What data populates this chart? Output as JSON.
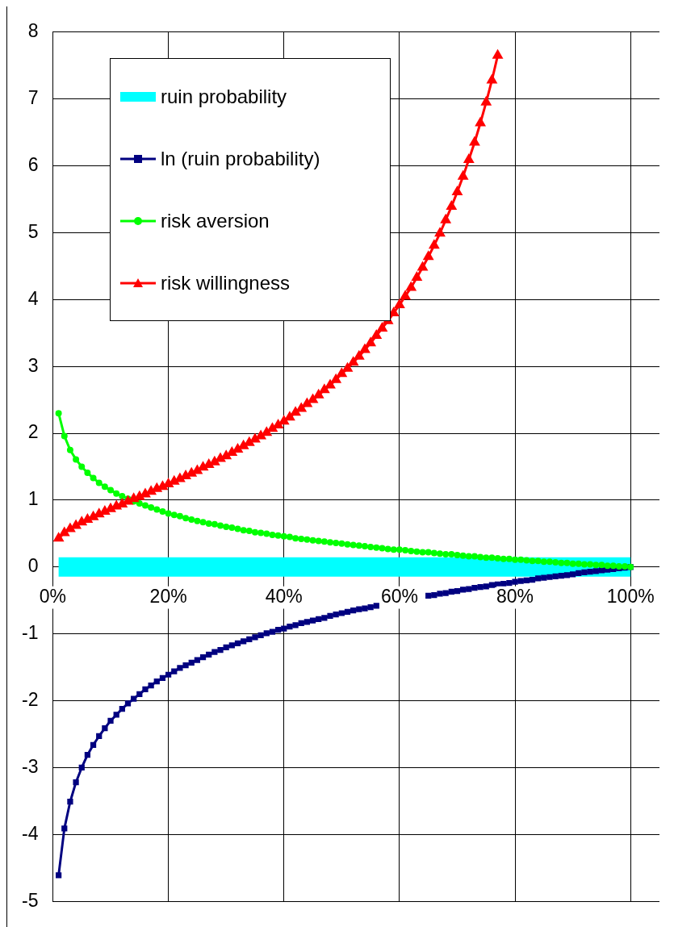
{
  "chart_data": {
    "type": "line",
    "x": [
      0.01,
      0.02,
      0.03,
      0.04,
      0.05,
      0.06,
      0.07,
      0.08,
      0.09,
      0.1,
      0.11,
      0.12,
      0.13,
      0.14,
      0.15,
      0.16,
      0.17,
      0.18,
      0.19,
      0.2,
      0.21,
      0.22,
      0.23,
      0.24,
      0.25,
      0.26,
      0.27,
      0.28,
      0.29,
      0.3,
      0.31,
      0.32,
      0.33,
      0.34,
      0.35,
      0.36,
      0.37,
      0.38,
      0.39,
      0.4,
      0.41,
      0.42,
      0.43,
      0.44,
      0.45,
      0.46,
      0.47,
      0.48,
      0.49,
      0.5,
      0.51,
      0.52,
      0.53,
      0.54,
      0.55,
      0.56,
      0.57,
      0.58,
      0.59,
      0.6,
      0.61,
      0.62,
      0.63,
      0.64,
      0.65,
      0.66,
      0.67,
      0.68,
      0.69,
      0.7,
      0.71,
      0.72,
      0.73,
      0.74,
      0.75,
      0.76,
      0.77,
      0.78,
      0.79,
      0.8,
      0.81,
      0.82,
      0.83,
      0.84,
      0.85,
      0.86,
      0.87,
      0.88,
      0.89,
      0.9,
      0.91,
      0.92,
      0.93,
      0.94,
      0.95,
      0.96,
      0.97,
      0.98,
      0.99,
      1.0
    ],
    "series": [
      {
        "name": "ruin probability",
        "color": "#00ffff",
        "marker": "none",
        "values": [
          0,
          0,
          0,
          0,
          0,
          0,
          0,
          0,
          0,
          0,
          0,
          0,
          0,
          0,
          0,
          0,
          0,
          0,
          0,
          0,
          0,
          0,
          0,
          0,
          0,
          0,
          0,
          0,
          0,
          0,
          0,
          0,
          0,
          0,
          0,
          0,
          0,
          0,
          0,
          0,
          0,
          0,
          0,
          0,
          0,
          0,
          0,
          0,
          0,
          0,
          0,
          0,
          0,
          0,
          0,
          0,
          0,
          0,
          0,
          0,
          0,
          0,
          0,
          0,
          0,
          0,
          0,
          0,
          0,
          0,
          0,
          0,
          0,
          0,
          0,
          0,
          0,
          0,
          0,
          0,
          0,
          0,
          0,
          0,
          0,
          0,
          0,
          0,
          0,
          0,
          0,
          0,
          0,
          0,
          0,
          0,
          0,
          0,
          0,
          0
        ]
      },
      {
        "name": "ln (ruin probability)",
        "color": "#000080",
        "marker": "square",
        "values": [
          -4.61,
          -3.91,
          -3.51,
          -3.22,
          -3.0,
          -2.81,
          -2.66,
          -2.53,
          -2.41,
          -2.3,
          -2.21,
          -2.12,
          -2.04,
          -1.97,
          -1.9,
          -1.83,
          -1.77,
          -1.71,
          -1.66,
          -1.61,
          -1.56,
          -1.51,
          -1.47,
          -1.43,
          -1.39,
          -1.35,
          -1.31,
          -1.27,
          -1.24,
          -1.2,
          -1.17,
          -1.14,
          -1.11,
          -1.08,
          -1.05,
          -1.02,
          -0.99,
          -0.97,
          -0.94,
          -0.92,
          -0.89,
          -0.87,
          -0.84,
          -0.82,
          -0.8,
          -0.78,
          -0.76,
          -0.73,
          -0.71,
          -0.69,
          -0.67,
          -0.65,
          -0.63,
          -0.62,
          -0.6,
          -0.58,
          null,
          null,
          null,
          null,
          null,
          null,
          null,
          null,
          -0.43,
          -0.42,
          -0.4,
          -0.39,
          -0.37,
          -0.36,
          -0.34,
          -0.33,
          -0.31,
          -0.3,
          -0.29,
          -0.27,
          -0.26,
          -0.25,
          -0.24,
          -0.22,
          -0.21,
          -0.2,
          -0.19,
          -0.17,
          -0.16,
          -0.15,
          -0.14,
          -0.13,
          -0.12,
          -0.11,
          -0.09,
          -0.08,
          -0.07,
          -0.06,
          -0.05,
          -0.04,
          -0.03,
          -0.02,
          -0.01,
          0
        ]
      },
      {
        "name": "risk aversion",
        "color": "#00ff00",
        "marker": "circle",
        "values": [
          2.3,
          1.96,
          1.75,
          1.61,
          1.5,
          1.41,
          1.33,
          1.26,
          1.2,
          1.15,
          1.1,
          1.06,
          1.02,
          0.98,
          0.95,
          0.92,
          0.89,
          0.86,
          0.83,
          0.8,
          0.78,
          0.76,
          0.73,
          0.71,
          0.69,
          0.67,
          0.65,
          0.64,
          0.62,
          0.6,
          0.59,
          0.57,
          0.55,
          0.54,
          0.52,
          0.51,
          0.5,
          0.48,
          0.47,
          0.46,
          0.45,
          0.43,
          0.42,
          0.41,
          0.4,
          0.39,
          0.38,
          0.37,
          0.36,
          0.35,
          0.34,
          0.33,
          0.32,
          0.31,
          0.3,
          0.29,
          0.28,
          0.27,
          0.26,
          0.26,
          0.25,
          0.24,
          0.23,
          0.22,
          0.22,
          0.21,
          0.2,
          0.19,
          0.19,
          0.18,
          0.17,
          0.16,
          0.16,
          0.15,
          0.14,
          0.14,
          0.13,
          0.12,
          0.12,
          0.11,
          0.11,
          0.1,
          0.09,
          0.09,
          0.08,
          0.08,
          0.07,
          0.06,
          0.06,
          0.05,
          0.05,
          0.04,
          0.04,
          0.03,
          0.03,
          0.02,
          0.02,
          0.01,
          0.01,
          0
        ]
      },
      {
        "name": "risk willingness",
        "color": "#ff0000",
        "marker": "triangle",
        "values": [
          0.43,
          0.51,
          0.57,
          0.62,
          0.67,
          0.71,
          0.75,
          0.79,
          0.83,
          0.87,
          0.91,
          0.94,
          0.98,
          1.02,
          1.05,
          1.09,
          1.13,
          1.17,
          1.2,
          1.24,
          1.28,
          1.32,
          1.36,
          1.4,
          1.44,
          1.49,
          1.53,
          1.57,
          1.62,
          1.66,
          1.71,
          1.76,
          1.81,
          1.86,
          1.91,
          1.96,
          2.01,
          2.07,
          2.12,
          2.18,
          2.24,
          2.31,
          2.37,
          2.44,
          2.5,
          2.57,
          2.65,
          2.72,
          2.8,
          2.89,
          2.97,
          3.06,
          3.15,
          3.25,
          3.35,
          3.46,
          3.57,
          3.68,
          3.8,
          3.92,
          4.05,
          4.18,
          4.33,
          4.48,
          4.64,
          4.81,
          4.99,
          5.19,
          5.39,
          5.61,
          5.84,
          6.09,
          6.35,
          6.64,
          6.95,
          7.28,
          7.65,
          null,
          null,
          null,
          null,
          null,
          null,
          null,
          null,
          null,
          null,
          null,
          null,
          null,
          null,
          null,
          null,
          null,
          null,
          null,
          null,
          null,
          null,
          null
        ]
      }
    ],
    "xlim": [
      0,
      1.05
    ],
    "xticks": [
      {
        "value": 0,
        "label": "0%"
      },
      {
        "value": 0.2,
        "label": "20%"
      },
      {
        "value": 0.4,
        "label": "40%"
      },
      {
        "value": 0.6,
        "label": "60%"
      },
      {
        "value": 0.8,
        "label": "80%"
      },
      {
        "value": 1,
        "label": "100%"
      }
    ],
    "ylim": [
      -5,
      8
    ],
    "yticks": [
      -5,
      -4,
      -3,
      -2,
      -1,
      0,
      1,
      2,
      3,
      4,
      5,
      6,
      7,
      8
    ],
    "grid": true,
    "legend": "top left",
    "line_style": "solid"
  }
}
